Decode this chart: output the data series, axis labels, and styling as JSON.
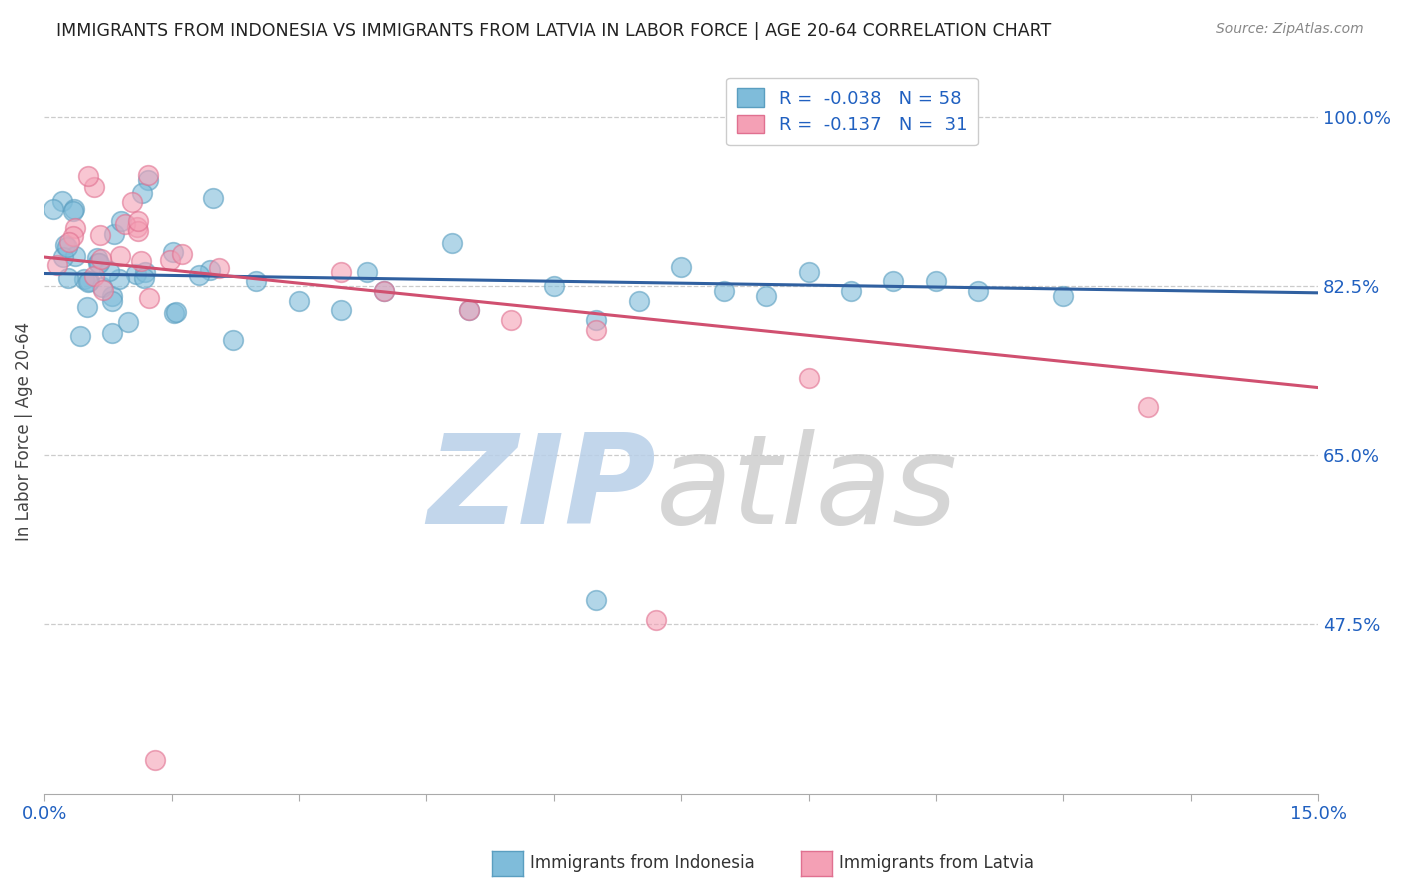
{
  "title": "IMMIGRANTS FROM INDONESIA VS IMMIGRANTS FROM LATVIA IN LABOR FORCE | AGE 20-64 CORRELATION CHART",
  "source": "Source: ZipAtlas.com",
  "ylabel": "In Labor Force | Age 20-64",
  "xmin": 0.0,
  "xmax": 0.15,
  "ymin": 0.3,
  "ymax": 1.05,
  "yticks": [
    0.475,
    0.65,
    0.825,
    1.0
  ],
  "ytick_labels": [
    "47.5%",
    "65.0%",
    "82.5%",
    "100.0%"
  ],
  "xtick_positions": [
    0.0,
    0.015,
    0.03,
    0.045,
    0.06,
    0.075,
    0.09,
    0.105,
    0.12,
    0.135,
    0.15
  ],
  "xtick_labels_show": [
    "0.0%",
    "",
    "",
    "",
    "",
    "",
    "",
    "",
    "",
    "",
    "15.0%"
  ],
  "legend_labels": [
    "Immigrants from Indonesia",
    "Immigrants from Latvia"
  ],
  "R_indonesia": -0.038,
  "N_indonesia": 58,
  "R_latvia": -0.137,
  "N_latvia": 31,
  "blue_color": "#7fbcda",
  "pink_color": "#f4a0b5",
  "blue_edge_color": "#5a9ec0",
  "pink_edge_color": "#e07090",
  "blue_line_color": "#3060a0",
  "pink_line_color": "#d05070",
  "watermark": "ZIPatlas",
  "watermark_blue": "#b8cfe8",
  "watermark_gray": "#c8c8c8",
  "grid_color": "#cccccc",
  "title_color": "#222222",
  "source_color": "#888888",
  "axis_label_color": "#444444",
  "right_tick_color": "#2060c0"
}
